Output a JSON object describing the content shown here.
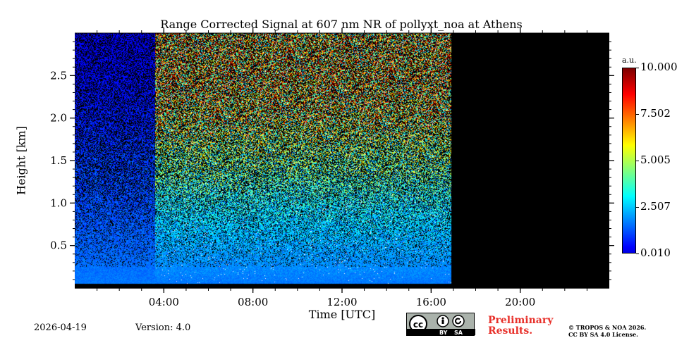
{
  "footer": {
    "date": "2026-04-19",
    "version": "Version: 4.0",
    "preliminary_line1": "Preliminary",
    "preliminary_line2": "Results.",
    "copyright_line1": "© TROPOS & NOA 2026.",
    "copyright_line2": "CC BY SA 4.0 License.",
    "license_badge": {
      "cc": "cc",
      "by": "BY",
      "sa": "SA"
    }
  },
  "colors": {
    "background_no_data": "#000000",
    "preliminary_text": "#e8302a",
    "badge_gray": "#aab2ab"
  },
  "chart_data": {
    "type": "heatmap",
    "title": "Range Corrected Signal at 607 nm NR of pollyxt_noa at Athens",
    "xlabel": "Time [UTC]",
    "ylabel": "Height [km]",
    "x_unit": "hours UTC",
    "xlim": [
      0,
      24
    ],
    "ylim": [
      0,
      3
    ],
    "x_ticks": [
      {
        "value": 4,
        "label": "04:00"
      },
      {
        "value": 8,
        "label": "08:00"
      },
      {
        "value": 12,
        "label": "12:00"
      },
      {
        "value": 16,
        "label": "16:00"
      },
      {
        "value": 20,
        "label": "20:00"
      }
    ],
    "x_minor_tick_step": 1,
    "y_ticks": [
      {
        "value": 0.5,
        "label": "0.5"
      },
      {
        "value": 1.0,
        "label": "1.0"
      },
      {
        "value": 1.5,
        "label": "1.5"
      },
      {
        "value": 2.0,
        "label": "2.0"
      },
      {
        "value": 2.5,
        "label": "2.5"
      }
    ],
    "y_minor_tick_step": 0.1,
    "colorbar": {
      "unit": "a.u.",
      "range": [
        0.01,
        10.0
      ],
      "colormap": "jet",
      "ticks": [
        {
          "value": 10.0,
          "label": "10.000"
        },
        {
          "value": 7.502,
          "label": "7.502"
        },
        {
          "value": 5.005,
          "label": "5.005"
        },
        {
          "value": 2.507,
          "label": "2.507"
        },
        {
          "value": 0.01,
          "label": "0.010"
        }
      ]
    },
    "data_coverage_hours": [
      0,
      16.9
    ],
    "regime_change_hour": 3.6,
    "signal_profile": {
      "description_units": "mean signal (a.u.) by time segment and height (km)",
      "segments": [
        {
          "time_range": [
            0,
            3.6
          ],
          "height_km": [
            0.05,
            0.5,
            1.0,
            1.5,
            2.0,
            2.5,
            3.0
          ],
          "mean_signal": [
            1.6,
            1.3,
            1.0,
            0.8,
            0.5,
            0.3,
            0.2
          ]
        },
        {
          "time_range": [
            3.6,
            16.9
          ],
          "height_km": [
            0.05,
            0.5,
            1.0,
            1.5,
            2.0,
            2.5,
            3.0
          ],
          "mean_signal": [
            1.6,
            2.0,
            2.6,
            3.5,
            4.6,
            5.2,
            5.0
          ]
        }
      ]
    }
  }
}
